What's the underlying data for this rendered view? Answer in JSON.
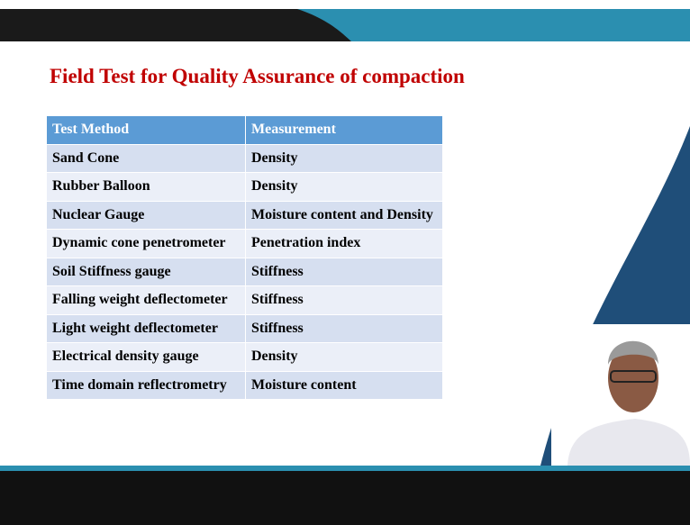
{
  "title": "Field Test for Quality Assurance of compaction",
  "table": {
    "header": [
      "Test Method",
      "Measurement"
    ],
    "rows": [
      [
        "Sand Cone",
        "Density"
      ],
      [
        "Rubber Balloon",
        "Density"
      ],
      [
        "Nuclear Gauge",
        "Moisture content and Density"
      ],
      [
        "Dynamic cone penetrometer",
        "Penetration index"
      ],
      [
        "Soil Stiffness gauge",
        "Stiffness"
      ],
      [
        "Falling weight deflectometer",
        "Stiffness"
      ],
      [
        "Light weight deflectometer",
        "Stiffness"
      ],
      [
        "Electrical density gauge",
        "Density"
      ],
      [
        "Time domain reflectrometry",
        "Moisture content"
      ]
    ]
  }
}
